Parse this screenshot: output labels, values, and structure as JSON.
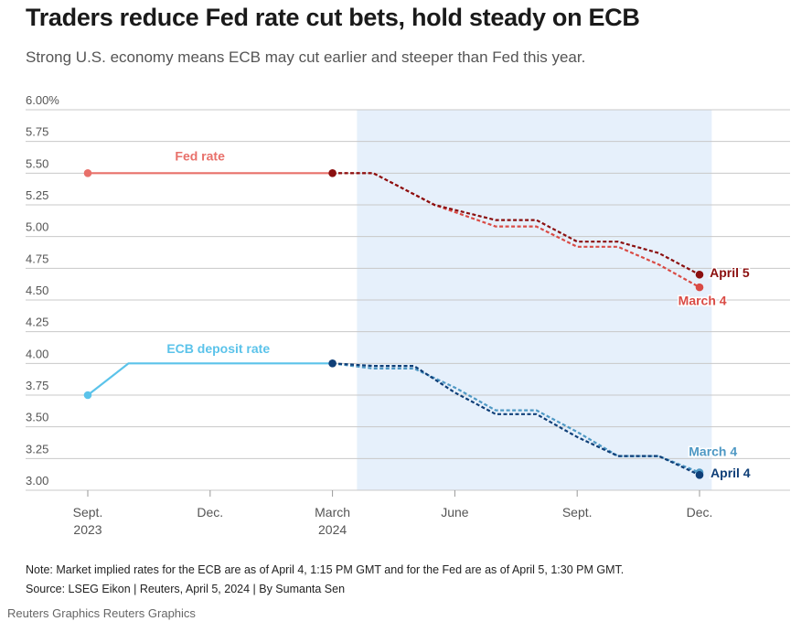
{
  "title": "Traders reduce Fed rate cut bets, hold steady on ECB",
  "subtitle": "Strong U.S. economy means ECB may cut earlier and steeper than Fed this year.",
  "note": "Note: Market implied rates for the ECB are as of April 4, 1:15 PM GMT and for the Fed are as of April 5, 1:30 PM GMT.",
  "source": "Source: LSEG Eikon | Reuters, April 5, 2024 | By Sumanta Sen",
  "credit": "Reuters Graphics Reuters Graphics",
  "chart_data": {
    "type": "line",
    "title": "Traders reduce Fed rate cut bets, hold steady on ECB",
    "ylabel": "",
    "xlabel": "",
    "ylim": [
      3.0,
      6.0
    ],
    "y_ticks": [
      "6.00%",
      "5.75",
      "5.50",
      "5.25",
      "5.00",
      "4.75",
      "4.50",
      "4.25",
      "4.00",
      "3.75",
      "3.50",
      "3.25",
      "3.00"
    ],
    "y_tick_values": [
      6.0,
      5.75,
      5.5,
      5.25,
      5.0,
      4.75,
      4.5,
      4.25,
      4.0,
      3.75,
      3.5,
      3.25,
      3.0
    ],
    "x_months_range": [
      0,
      17
    ],
    "x_ticks": [
      {
        "month": 0,
        "line1": "Sept.",
        "line2": "2023"
      },
      {
        "month": 3,
        "line1": "Dec.",
        "line2": ""
      },
      {
        "month": 6,
        "line1": "March",
        "line2": "2024"
      },
      {
        "month": 9,
        "line1": "June",
        "line2": ""
      },
      {
        "month": 12,
        "line1": "Sept.",
        "line2": ""
      },
      {
        "month": 15,
        "line1": "Dec.",
        "line2": ""
      }
    ],
    "shaded_region": {
      "from_month": 6.6,
      "to_month": 15.3
    },
    "series": [
      {
        "name": "Fed rate",
        "kind": "actual",
        "color": "#e8706a",
        "points": [
          [
            0,
            5.5
          ],
          [
            6,
            5.5
          ]
        ]
      },
      {
        "name": "ECB deposit rate",
        "kind": "actual",
        "color": "#5bc3ea",
        "points": [
          [
            0,
            3.75
          ],
          [
            1,
            4.0
          ],
          [
            6,
            4.0
          ]
        ]
      },
      {
        "name": "Fed implied, March 4",
        "kind": "implied",
        "color": "#d94b45",
        "points": [
          [
            6,
            5.5
          ],
          [
            7,
            5.5
          ],
          [
            8.5,
            5.25
          ],
          [
            10,
            5.08
          ],
          [
            11,
            5.08
          ],
          [
            12,
            4.92
          ],
          [
            13,
            4.92
          ],
          [
            14,
            4.78
          ],
          [
            15,
            4.6
          ]
        ]
      },
      {
        "name": "Fed implied, April 5",
        "kind": "implied",
        "color": "#8b0f0f",
        "points": [
          [
            6,
            5.5
          ],
          [
            7,
            5.5
          ],
          [
            8.5,
            5.25
          ],
          [
            10,
            5.13
          ],
          [
            11,
            5.13
          ],
          [
            12,
            4.96
          ],
          [
            13,
            4.96
          ],
          [
            14,
            4.87
          ],
          [
            15,
            4.7
          ]
        ]
      },
      {
        "name": "ECB implied, March 4",
        "kind": "implied",
        "color": "#4e98c4",
        "points": [
          [
            6,
            4.0
          ],
          [
            7,
            3.96
          ],
          [
            8,
            3.96
          ],
          [
            9,
            3.81
          ],
          [
            10,
            3.63
          ],
          [
            11,
            3.63
          ],
          [
            12,
            3.46
          ],
          [
            13,
            3.27
          ],
          [
            14,
            3.27
          ],
          [
            15,
            3.14
          ]
        ]
      },
      {
        "name": "ECB implied, April 4",
        "kind": "implied",
        "color": "#0f3f78",
        "points": [
          [
            6,
            4.0
          ],
          [
            7,
            3.98
          ],
          [
            8,
            3.98
          ],
          [
            9,
            3.77
          ],
          [
            10,
            3.6
          ],
          [
            11,
            3.6
          ],
          [
            12,
            3.42
          ],
          [
            13,
            3.27
          ],
          [
            14,
            3.27
          ],
          [
            15,
            3.12
          ]
        ]
      }
    ],
    "endpoints": [
      {
        "month": 0,
        "value": 5.5,
        "color": "#e8706a"
      },
      {
        "month": 6,
        "value": 5.5,
        "color": "#8b0f0f"
      },
      {
        "month": 15,
        "value": 4.7,
        "color": "#8b0f0f"
      },
      {
        "month": 15,
        "value": 4.6,
        "color": "#d94b45"
      },
      {
        "month": 0,
        "value": 3.75,
        "color": "#5bc3ea"
      },
      {
        "month": 6,
        "value": 4.0,
        "color": "#0f3f78"
      },
      {
        "month": 15,
        "value": 3.14,
        "color": "#4e98c4"
      },
      {
        "month": 15,
        "value": 3.12,
        "color": "#0f3f78"
      }
    ],
    "annotations": [
      {
        "text": "Fed rate",
        "color": "#e8706a",
        "month": 2.75,
        "value": 5.6,
        "anchor": "middle"
      },
      {
        "text": "ECB deposit rate",
        "color": "#5bc3ea",
        "month": 3.2,
        "value": 4.08,
        "anchor": "middle"
      },
      {
        "text": "April 5",
        "color": "#8b0f0f",
        "month": 15.25,
        "value": 4.68,
        "anchor": "start"
      },
      {
        "text": "March 4",
        "color": "#d94b45",
        "month": 15.07,
        "value": 4.46,
        "anchor": "middle"
      },
      {
        "text": "March 4",
        "color": "#4e98c4",
        "month": 15.33,
        "value": 3.27,
        "anchor": "middle"
      },
      {
        "text": "April 4",
        "color": "#0f3f78",
        "month": 15.27,
        "value": 3.1,
        "anchor": "start"
      }
    ]
  }
}
